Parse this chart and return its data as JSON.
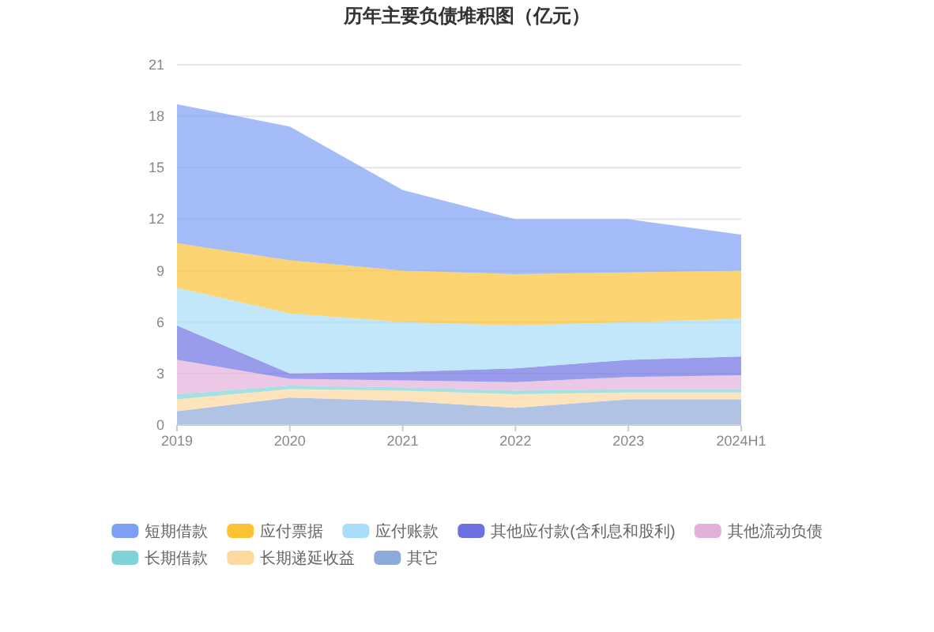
{
  "chart_data": {
    "type": "area",
    "title": "历年主要负债堆积图（亿元）",
    "categories": [
      "2019",
      "2020",
      "2021",
      "2022",
      "2023",
      "2024H1"
    ],
    "stacked": true,
    "ylim": [
      0,
      21
    ],
    "yticks": [
      0,
      3,
      6,
      9,
      12,
      15,
      18,
      21
    ],
    "grid": "y",
    "legend": "bottom",
    "series": [
      {
        "name": "其它",
        "color": "#8eaad8",
        "values": [
          0.8,
          1.6,
          1.4,
          1.0,
          1.5,
          1.5
        ]
      },
      {
        "name": "长期递延收益",
        "color": "#fdd9a0",
        "values": [
          0.7,
          0.5,
          0.6,
          0.8,
          0.4,
          0.4
        ]
      },
      {
        "name": "长期借款",
        "color": "#7fd3d6",
        "values": [
          0.3,
          0.2,
          0.2,
          0.2,
          0.2,
          0.2
        ]
      },
      {
        "name": "其他流动负债",
        "color": "#e3b0da",
        "values": [
          2.0,
          0.4,
          0.4,
          0.5,
          0.7,
          0.8
        ]
      },
      {
        "name": "其他应付款(含利息和股利)",
        "color": "#6e70e2",
        "values": [
          2.0,
          0.3,
          0.5,
          0.8,
          1.0,
          1.1
        ]
      },
      {
        "name": "应付账款",
        "color": "#a9ddf8",
        "values": [
          2.2,
          3.5,
          2.9,
          2.5,
          2.2,
          2.2
        ]
      },
      {
        "name": "应付票据",
        "color": "#fbc234",
        "values": [
          2.6,
          3.1,
          3.0,
          3.0,
          2.9,
          2.8
        ]
      },
      {
        "name": "短期借款",
        "color": "#7e9ff5",
        "values": [
          8.1,
          7.8,
          4.7,
          3.2,
          3.1,
          2.1
        ]
      }
    ]
  }
}
